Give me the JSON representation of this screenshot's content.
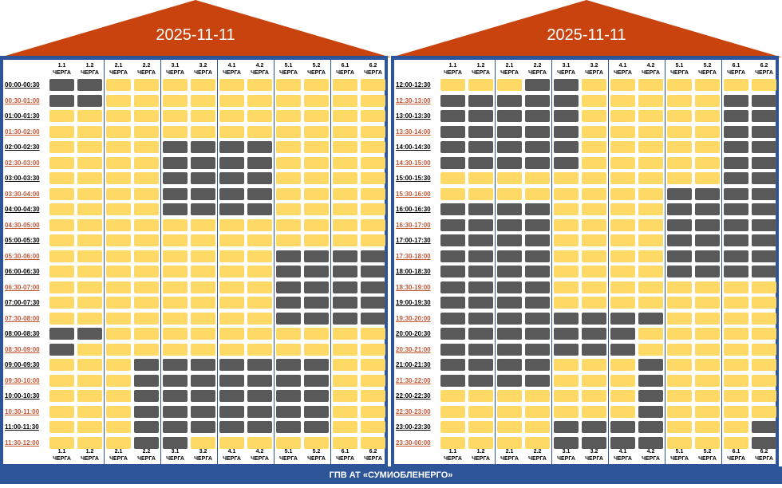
{
  "footer": "ГПВ АТ «СУМИОБЛЕНЕРГО»",
  "colors": {
    "roof": "#c9430f",
    "frame": "#2e5597",
    "power_on": "#ffd966",
    "power_off": "#595959"
  },
  "panels": [
    {
      "date": "2025-11-11",
      "queues": [
        {
          "num": "1.1",
          "word": "ЧЕРГА"
        },
        {
          "num": "1.2",
          "word": "ЧЕРГА"
        },
        {
          "num": "2.1",
          "word": "ЧЕРГА"
        },
        {
          "num": "2.2",
          "word": "ЧЕРГА"
        },
        {
          "num": "3.1",
          "word": "ЧЕРГА"
        },
        {
          "num": "3.2",
          "word": "ЧЕРГА"
        },
        {
          "num": "4.1",
          "word": "ЧЕРГА"
        },
        {
          "num": "4.2",
          "word": "ЧЕРГА"
        },
        {
          "num": "5.1",
          "word": "ЧЕРГА"
        },
        {
          "num": "5.2",
          "word": "ЧЕРГА"
        },
        {
          "num": "6.1",
          "word": "ЧЕРГА"
        },
        {
          "num": "6.2",
          "word": "ЧЕРГА"
        }
      ],
      "times": [
        "00:00-00:30",
        "00:30-01:00",
        "01:00-01:30",
        "01:30-02:00",
        "02:00-02:30",
        "02:30-03:00",
        "03:00-03:30",
        "03:30-04:00",
        "04:00-04:30",
        "04:30-05:00",
        "05:00-05:30",
        "05:30-06:00",
        "06:00-06:30",
        "06:30-07:00",
        "07:00-07:30",
        "07:30-08:00",
        "08:00-08:30",
        "08:30-09:00",
        "09:00-09:30",
        "09:30-10:00",
        "10:00-10:30",
        "10:30-11:00",
        "11:00-11:30",
        "11:30-12:00"
      ],
      "rows": [
        "110000000000",
        "110000000000",
        "000000000000",
        "000000000000",
        "000011110000",
        "000011110000",
        "000011110000",
        "000011110000",
        "000011110000",
        "000000000000",
        "000000000000",
        "000000001111",
        "000000001111",
        "000000001111",
        "000000001111",
        "000000001111",
        "110000000000",
        "100000000000",
        "000111111100",
        "000111111100",
        "000111111100",
        "000111111100",
        "000111111100",
        "000110000000"
      ]
    },
    {
      "date": "2025-11-11",
      "queues": [
        {
          "num": "1.1",
          "word": "ЧЕРГА"
        },
        {
          "num": "1.2",
          "word": "ЧЕРГА"
        },
        {
          "num": "2.1",
          "word": "ЧЕРГА"
        },
        {
          "num": "2.2",
          "word": "ЧЕРГА"
        },
        {
          "num": "3.1",
          "word": "ЧЕРГА"
        },
        {
          "num": "3.2",
          "word": "ЧЕРГА"
        },
        {
          "num": "4.1",
          "word": "ЧЕРГА"
        },
        {
          "num": "4.2",
          "word": "ЧЕРГА"
        },
        {
          "num": "5.1",
          "word": "ЧЕРГА"
        },
        {
          "num": "5.2",
          "word": "ЧЕРГА"
        },
        {
          "num": "6.1",
          "word": "ЧЕРГА"
        },
        {
          "num": "6.2",
          "word": "ЧЕРГА"
        }
      ],
      "times": [
        "12:00-12:30",
        "12:30-13:00",
        "13:00-13:30",
        "13:30-14:00",
        "14:00-14:30",
        "14:30-15:00",
        "15:00-15:30",
        "15:30-16:00",
        "16:00-16:30",
        "16:30-17:00",
        "17:00-17:30",
        "17:30-18:00",
        "18:00-18:30",
        "18:30-19:00",
        "19:00-19:30",
        "19:30-20:00",
        "20:00-20:30",
        "20:30-21:00",
        "21:00-21:30",
        "21:30-22:00",
        "22:00-22:30",
        "22:30-23:00",
        "23:00-23:30",
        "23:30-00:00"
      ],
      "rows": [
        "000110000000",
        "111110000011",
        "111110000011",
        "111110000011",
        "111110000011",
        "111110000011",
        "000000000011",
        "000000001111",
        "111100001111",
        "111100001111",
        "111100001111",
        "111100001111",
        "111100001111",
        "111100000000",
        "111100000000",
        "111111110000",
        "111111100000",
        "111111100000",
        "111100010000",
        "111100010000",
        "000000010000",
        "000000010000",
        "000011110001",
        "000011110001"
      ]
    }
  ]
}
